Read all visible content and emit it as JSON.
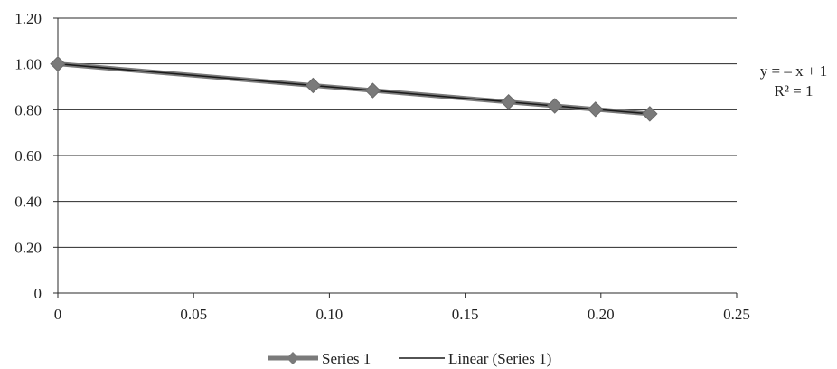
{
  "chart_data": {
    "type": "scatter",
    "title": "",
    "xlabel": "",
    "ylabel": "",
    "xlim": [
      0,
      0.25
    ],
    "ylim": [
      0,
      1.2
    ],
    "x_ticks": [
      {
        "value": 0,
        "label": "0"
      },
      {
        "value": 0.05,
        "label": "0.05"
      },
      {
        "value": 0.1,
        "label": "0.10"
      },
      {
        "value": 0.15,
        "label": "0.15"
      },
      {
        "value": 0.2,
        "label": "0.20"
      },
      {
        "value": 0.25,
        "label": "0.25"
      }
    ],
    "y_ticks": [
      {
        "value": 0,
        "label": "0"
      },
      {
        "value": 0.2,
        "label": "0.20"
      },
      {
        "value": 0.4,
        "label": "0.40"
      },
      {
        "value": 0.6,
        "label": "0.60"
      },
      {
        "value": 0.8,
        "label": "0.80"
      },
      {
        "value": 1.0,
        "label": "1.00"
      },
      {
        "value": 1.2,
        "label": "1.20"
      }
    ],
    "grid": "horizontal",
    "series": [
      {
        "name": "Series 1",
        "marker": "diamond",
        "color": "#7a7a7a",
        "points": [
          {
            "x": 0,
            "y": 1.0
          },
          {
            "x": 0.094,
            "y": 0.906
          },
          {
            "x": 0.116,
            "y": 0.884
          },
          {
            "x": 0.166,
            "y": 0.834
          },
          {
            "x": 0.183,
            "y": 0.817
          },
          {
            "x": 0.198,
            "y": 0.802
          },
          {
            "x": 0.218,
            "y": 0.782
          }
        ]
      }
    ],
    "trendline": {
      "name": "Linear (Series 1)",
      "type": "linear",
      "slope": -1,
      "intercept": 1,
      "x_range": [
        0,
        0.218
      ],
      "color": "#1a1a1a",
      "equation_lines": [
        "y = – x + 1",
        "R² = 1"
      ]
    },
    "legend": {
      "position": "bottom",
      "entries": [
        "Series 1",
        "Linear (Series 1)"
      ]
    }
  }
}
